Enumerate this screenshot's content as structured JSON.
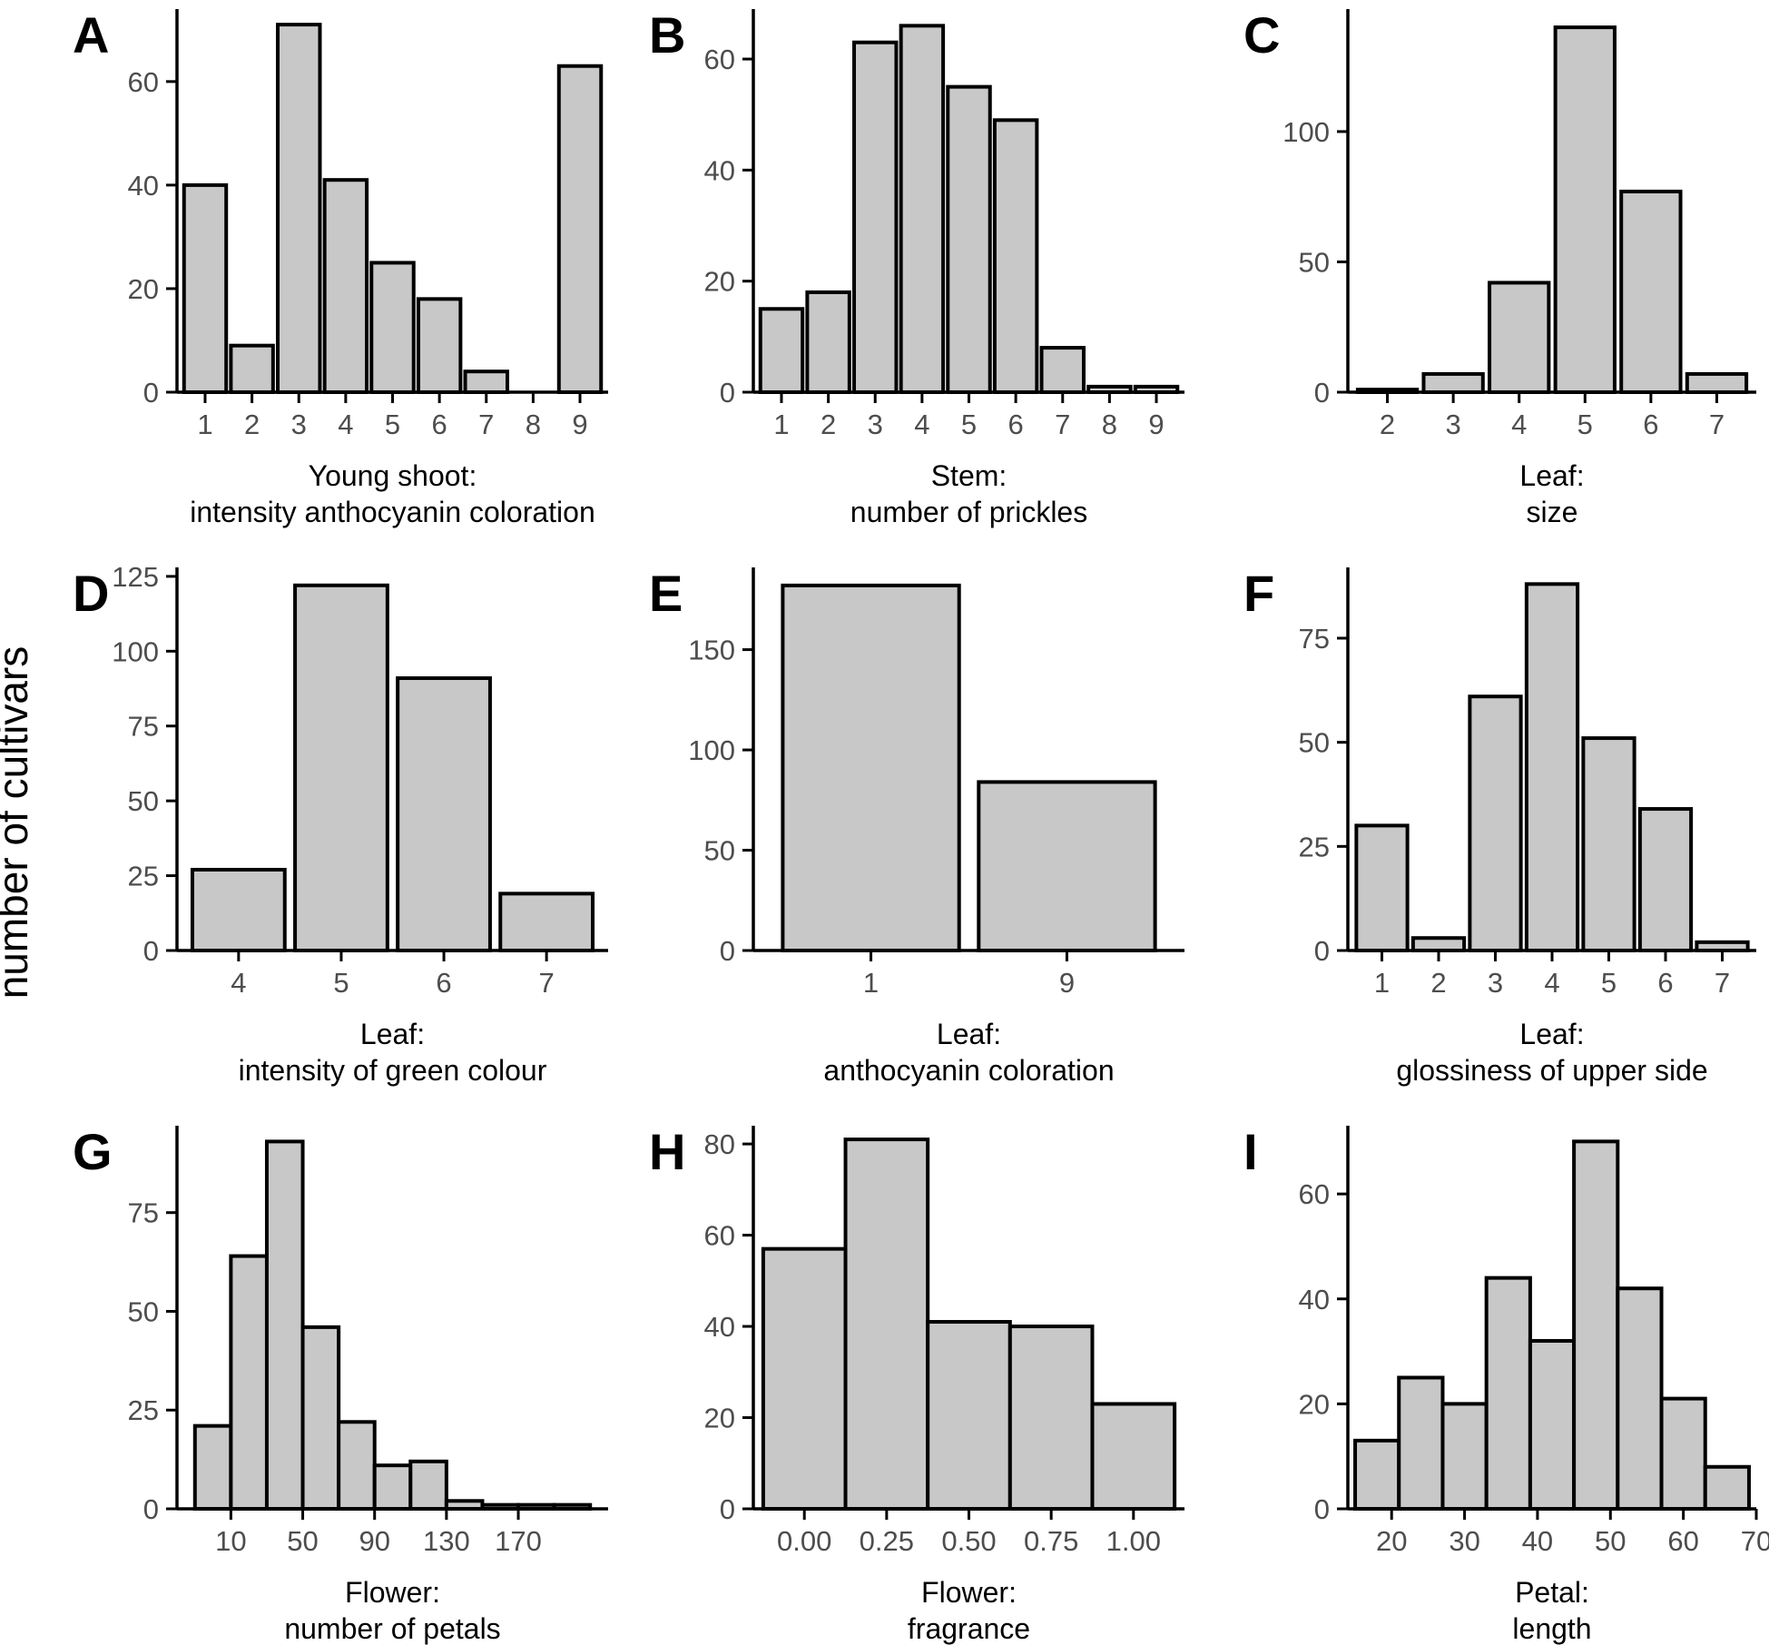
{
  "figure": {
    "ylabel": "number of cultivars"
  },
  "chart_data": [
    {
      "panel": "A",
      "type": "bar",
      "title": "",
      "xlabel_lines": [
        "Young shoot:",
        "intensity anthocyanin coloration"
      ],
      "ylabel": "number of cultivars",
      "categories": [
        "1",
        "2",
        "3",
        "4",
        "5",
        "6",
        "7",
        "8",
        "9"
      ],
      "values": [
        40,
        9,
        71,
        41,
        25,
        18,
        4,
        0,
        63
      ],
      "ylim": [
        0,
        74
      ],
      "yticks": [
        0,
        20,
        40,
        60
      ],
      "grid": false
    },
    {
      "panel": "B",
      "type": "bar",
      "title": "",
      "xlabel_lines": [
        "Stem:",
        "number of prickles"
      ],
      "ylabel": "number of cultivars",
      "categories": [
        "1",
        "2",
        "3",
        "4",
        "5",
        "6",
        "7",
        "8",
        "9"
      ],
      "values": [
        15,
        18,
        63,
        66,
        55,
        49,
        8,
        1,
        1
      ],
      "ylim": [
        0,
        69
      ],
      "yticks": [
        0,
        20,
        40,
        60
      ],
      "grid": false
    },
    {
      "panel": "C",
      "type": "bar",
      "title": "",
      "xlabel_lines": [
        "Leaf:",
        "size"
      ],
      "ylabel": "number of cultivars",
      "categories": [
        "2",
        "3",
        "4",
        "5",
        "6",
        "7"
      ],
      "values": [
        1,
        7,
        42,
        140,
        77,
        7
      ],
      "ylim": [
        0,
        147
      ],
      "yticks": [
        0,
        50,
        100
      ],
      "grid": false
    },
    {
      "panel": "D",
      "type": "bar",
      "title": "",
      "xlabel_lines": [
        "Leaf:",
        "intensity of green colour"
      ],
      "ylabel": "number of cultivars",
      "categories": [
        "4",
        "5",
        "6",
        "7"
      ],
      "values": [
        27,
        122,
        91,
        19
      ],
      "ylim": [
        0,
        128
      ],
      "yticks": [
        0,
        25,
        50,
        75,
        100,
        125
      ],
      "grid": false
    },
    {
      "panel": "E",
      "type": "bar",
      "title": "",
      "xlabel_lines": [
        "Leaf:",
        "anthocyanin coloration"
      ],
      "ylabel": "number of cultivars",
      "categories": [
        "1",
        "9"
      ],
      "values": [
        182,
        84
      ],
      "ylim": [
        0,
        191
      ],
      "yticks": [
        0,
        50,
        100,
        150
      ],
      "grid": false
    },
    {
      "panel": "F",
      "type": "bar",
      "title": "",
      "xlabel_lines": [
        "Leaf:",
        "glossiness of upper side"
      ],
      "ylabel": "number of cultivars",
      "categories": [
        "1",
        "2",
        "3",
        "4",
        "5",
        "6",
        "7"
      ],
      "values": [
        30,
        3,
        61,
        88,
        51,
        34,
        2
      ],
      "ylim": [
        0,
        92
      ],
      "yticks": [
        0,
        25,
        50,
        75
      ],
      "grid": false
    },
    {
      "panel": "G",
      "type": "histogram",
      "title": "",
      "xlabel_lines": [
        "Flower:",
        "number of petals"
      ],
      "ylabel": "number of cultivars",
      "bin_edges": [
        -10,
        10,
        30,
        50,
        70,
        90,
        110,
        130,
        150,
        170,
        190,
        210
      ],
      "values": [
        21,
        64,
        93,
        46,
        22,
        11,
        12,
        2,
        1,
        1,
        1
      ],
      "xlim": [
        -20,
        220
      ],
      "xticks": [
        10,
        50,
        90,
        130,
        170
      ],
      "ylim": [
        0,
        97
      ],
      "yticks": [
        0,
        25,
        50,
        75
      ],
      "grid": false
    },
    {
      "panel": "H",
      "type": "histogram",
      "title": "",
      "xlabel_lines": [
        "Flower:",
        "fragrance"
      ],
      "ylabel": "number of cultivars",
      "bin_edges": [
        -0.125,
        0.125,
        0.375,
        0.625,
        0.875,
        1.125
      ],
      "values": [
        57,
        81,
        41,
        40,
        23
      ],
      "xlim": [
        -0.155,
        1.155
      ],
      "xticks": [
        0,
        0.25,
        0.5,
        0.75,
        1
      ],
      "xtick_labels": [
        "0.00",
        "0.25",
        "0.50",
        "0.75",
        "1.00"
      ],
      "ylim": [
        0,
        84
      ],
      "yticks": [
        0,
        20,
        40,
        60,
        80
      ],
      "grid": false
    },
    {
      "panel": "I",
      "type": "histogram",
      "title": "",
      "xlabel_lines": [
        "Petal:",
        "length"
      ],
      "ylabel": "number of cultivars",
      "bin_edges": [
        15,
        21,
        27,
        33,
        39,
        45,
        51,
        57,
        63,
        69
      ],
      "values": [
        13,
        25,
        20,
        44,
        32,
        70,
        42,
        21,
        8
      ],
      "xlim": [
        14,
        70
      ],
      "xticks": [
        20,
        30,
        40,
        50,
        60,
        70
      ],
      "ylim": [
        0,
        73
      ],
      "yticks": [
        0,
        20,
        40,
        60
      ],
      "grid": false
    }
  ]
}
